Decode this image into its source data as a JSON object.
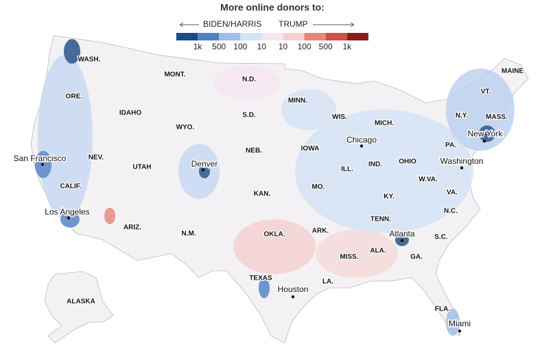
{
  "legend": {
    "title": "More online donors to:",
    "left_label": "BIDEN/HARRIS",
    "right_label": "TRUMP",
    "colors": [
      "#1b4a86",
      "#4f7fc6",
      "#9ebde7",
      "#d3e3f6",
      "#f6e6f0",
      "#f6d0d0",
      "#e3867c",
      "#c9524a",
      "#8b1c1c"
    ],
    "ticks": [
      "1k",
      "500",
      "100",
      "10",
      "10",
      "100",
      "500",
      "1k"
    ]
  },
  "states": [
    "WASH.",
    "ORE.",
    "IDAHO",
    "MONT.",
    "WYO.",
    "NEV.",
    "UTAH",
    "CALIF.",
    "ARIZ.",
    "N.M.",
    "N.D.",
    "S.D.",
    "NEB.",
    "KAN.",
    "OKLA.",
    "TEXAS",
    "MINN.",
    "IOWA",
    "MO.",
    "ARK.",
    "LA.",
    "MISS.",
    "WIS.",
    "ILL.",
    "IND.",
    "MICH.",
    "OHIO",
    "KY.",
    "TENN.",
    "ALA.",
    "GA.",
    "FLA.",
    "S.C.",
    "N.C.",
    "VA.",
    "W.VA.",
    "PA.",
    "N.Y.",
    "VT.",
    "MAINE",
    "MASS.",
    "ALASKA"
  ],
  "cities": [
    "San Francisco",
    "Los Angeles",
    "Denver",
    "Chicago",
    "New York",
    "Washington",
    "Atlanta",
    "Houston",
    "Miami"
  ]
}
